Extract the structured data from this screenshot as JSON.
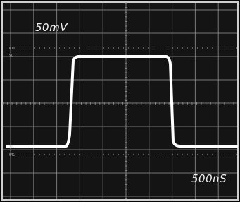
{
  "screen": {
    "volts_per_div": "50mV",
    "time_per_div": "500nS",
    "scale_labels": [
      "100",
      "90",
      "10",
      "0%"
    ]
  }
}
